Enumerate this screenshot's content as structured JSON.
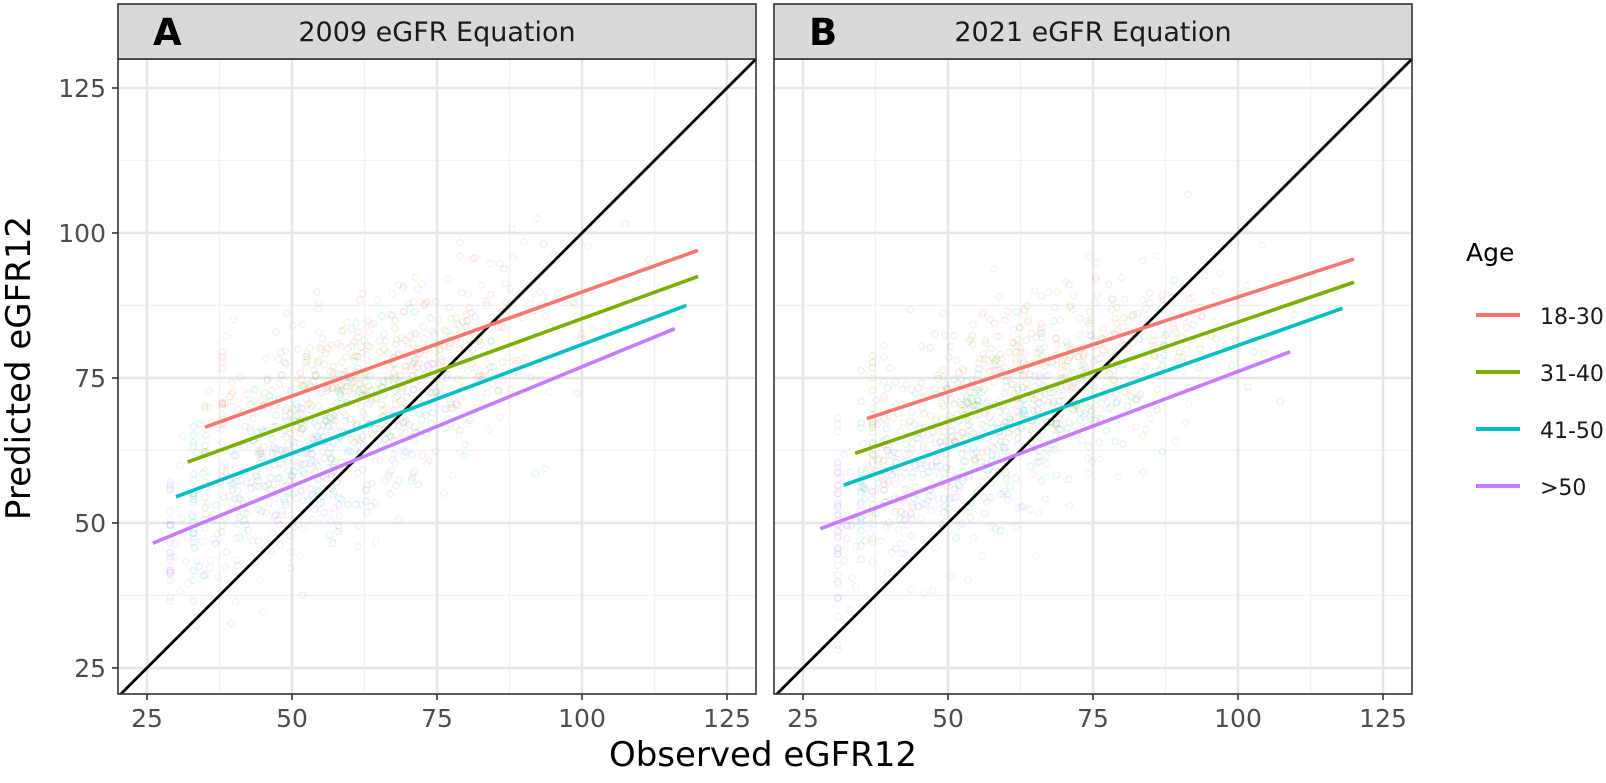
{
  "chart_data": {
    "type": "scatter",
    "xlabel": "Observed eGFR12",
    "ylabel": "Predicted eGFR12",
    "xlim": [
      20,
      130
    ],
    "ylim": [
      20.5,
      130
    ],
    "x_ticks": [
      25,
      50,
      75,
      100,
      125
    ],
    "y_ticks": [
      25,
      50,
      75,
      100,
      125
    ],
    "grid": true,
    "legend": {
      "title": "Age",
      "placement": "right",
      "entries": [
        "18-30",
        "31-40",
        "41-50",
        ">50"
      ]
    },
    "colors": {
      "18-30": "#F8766D",
      "31-40": "#7CAE00",
      "41-50": "#00BFC4",
      ">50": "#C77CFF",
      "identity_line": "#000000",
      "strip": "#D9D9D9"
    },
    "reference_line": {
      "x": [
        20,
        130
      ],
      "y": [
        20,
        130
      ]
    },
    "panels": [
      {
        "tag": "A",
        "strip_title": "2009 eGFR Equation",
        "series": [
          {
            "name": "18-30",
            "fit": {
              "x": [
                35,
                120
              ],
              "y": [
                66.5,
                97
              ]
            }
          },
          {
            "name": "31-40",
            "fit": {
              "x": [
                32,
                120
              ],
              "y": [
                60.5,
                92.5
              ]
            }
          },
          {
            "name": "41-50",
            "fit": {
              "x": [
                30,
                118
              ],
              "y": [
                54.5,
                87.5
              ]
            }
          },
          {
            "name": ">50",
            "fit": {
              "x": [
                26,
                116
              ],
              "y": [
                46.5,
                83.5
              ]
            }
          }
        ]
      },
      {
        "tag": "B",
        "strip_title": "2021 eGFR Equation",
        "series": [
          {
            "name": "18-30",
            "fit": {
              "x": [
                36,
                120
              ],
              "y": [
                68,
                95.5
              ]
            }
          },
          {
            "name": "31-40",
            "fit": {
              "x": [
                34,
                120
              ],
              "y": [
                62,
                91.5
              ]
            }
          },
          {
            "name": "41-50",
            "fit": {
              "x": [
                32,
                118
              ],
              "y": [
                56.5,
                87
              ]
            }
          },
          {
            "name": ">50",
            "fit": {
              "x": [
                28,
                109
              ],
              "y": [
                49,
                79.5
              ]
            }
          }
        ]
      }
    ]
  }
}
